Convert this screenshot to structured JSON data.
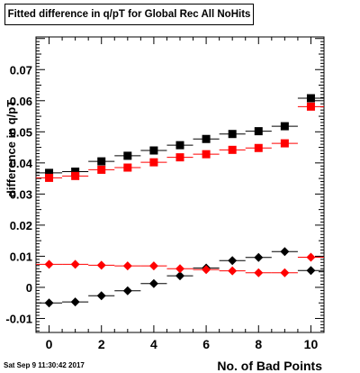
{
  "timestamp": "Sat Sep  9 11:30:42 2017",
  "chart_data": {
    "type": "scatter",
    "title": "Fitted difference in q/pT for Global Rec All NoHits",
    "xlabel": "No. of Bad Points",
    "ylabel": "difference in q/pT",
    "xlim": [
      -0.5,
      10.5
    ],
    "ylim": [
      -0.0145,
      0.0805
    ],
    "xticks": [
      0,
      2,
      4,
      6,
      8,
      10
    ],
    "yticks": [
      -0.01,
      0,
      0.01,
      0.02,
      0.03,
      0.04,
      0.05,
      0.06,
      0.07
    ],
    "ytick_labels": [
      "-0.01",
      "0",
      "0.01",
      "0.02",
      "0.03",
      "0.04",
      "0.05",
      "0.06",
      "0.07"
    ],
    "grid": false,
    "x": [
      0,
      1,
      2,
      3,
      4,
      5,
      6,
      7,
      8,
      9,
      10
    ],
    "x_error": 0.5,
    "series": [
      {
        "marker": "square",
        "color": "#000000",
        "values": [
          0.0368,
          0.0372,
          0.0405,
          0.0423,
          0.044,
          0.0457,
          0.0477,
          0.0493,
          0.0502,
          0.0518,
          0.0608
        ]
      },
      {
        "marker": "square",
        "color": "#ff0000",
        "values": [
          0.0352,
          0.0358,
          0.0378,
          0.0385,
          0.0402,
          0.0418,
          0.0428,
          0.0442,
          0.0448,
          0.0463,
          0.0581
        ]
      },
      {
        "marker": "diamond",
        "color": "#000000",
        "values": [
          -0.005,
          -0.0047,
          -0.0027,
          -0.0011,
          0.0012,
          0.0037,
          0.0062,
          0.0086,
          0.0096,
          0.0115,
          0.0054
        ]
      },
      {
        "marker": "diamond",
        "color": "#ff0000",
        "values": [
          0.0074,
          0.0074,
          0.0071,
          0.0069,
          0.0069,
          0.006,
          0.0057,
          0.0053,
          0.0047,
          0.0047,
          0.0097
        ]
      }
    ]
  }
}
